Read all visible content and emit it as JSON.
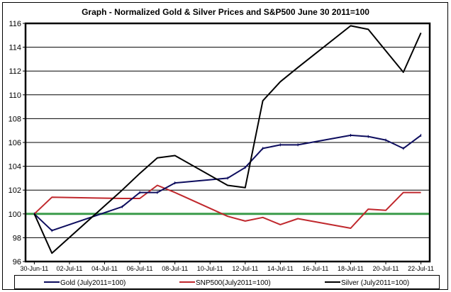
{
  "chart_data": {
    "type": "line",
    "title": "Graph - Normalized Gold & Silver Prices and S&P500  June 30 2011=100",
    "xlabel": "",
    "ylabel": "",
    "ylim": [
      96,
      116
    ],
    "yticks": [
      96,
      98,
      100,
      102,
      104,
      106,
      108,
      110,
      112,
      114,
      116
    ],
    "xlim": [
      "30-Jun-11",
      "22-Jul-11"
    ],
    "xtick_labels": [
      "30-Jun-11",
      "02-Jul-11",
      "04-Jul-11",
      "06-Jul-11",
      "08-Jul-11",
      "10-Jul-11",
      "12-Jul-11",
      "14-Jul-11",
      "16-Jul-11",
      "18-Jul-11",
      "20-Jul-11",
      "22-Jul-11"
    ],
    "grid": "horizontal",
    "legend_position": "bottom",
    "reference_line": {
      "y": 100,
      "color": "#3a9b4a"
    },
    "x": [
      "30-Jun-11",
      "01-Jul-11",
      "05-Jul-11",
      "06-Jul-11",
      "07-Jul-11",
      "08-Jul-11",
      "11-Jul-11",
      "12-Jul-11",
      "13-Jul-11",
      "14-Jul-11",
      "15-Jul-11",
      "18-Jul-11",
      "19-Jul-11",
      "20-Jul-11",
      "21-Jul-11",
      "22-Jul-11"
    ],
    "series": [
      {
        "name": "Gold (July2011=100)",
        "color": "#0d0d5e",
        "values": [
          100,
          98.6,
          100.6,
          101.8,
          101.8,
          102.6,
          103.0,
          103.9,
          105.5,
          105.8,
          105.8,
          106.6,
          106.5,
          106.2,
          105.5,
          106.6
        ]
      },
      {
        "name": "SNP500(July2011=100)",
        "color": "#c0282d",
        "values": [
          100,
          101.4,
          101.3,
          101.3,
          102.4,
          101.8,
          99.8,
          99.4,
          99.7,
          99.1,
          99.6,
          98.8,
          100.4,
          100.3,
          101.8,
          101.8
        ]
      },
      {
        "name": "Silver (July2011=100)",
        "color": "#000000",
        "values": [
          100,
          96.7,
          102.0,
          103.4,
          104.7,
          104.9,
          102.4,
          102.2,
          109.5,
          111.1,
          112.3,
          115.8,
          115.5,
          113.7,
          111.9,
          115.2
        ]
      }
    ]
  }
}
